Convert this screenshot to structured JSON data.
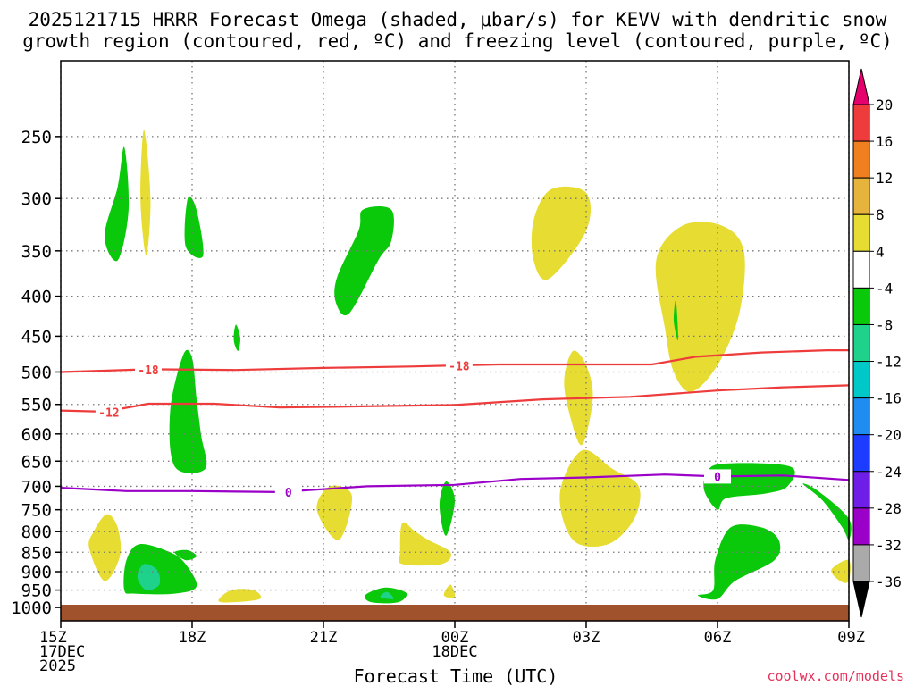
{
  "chart_data": {
    "type": "time-height cross section (filled contour + line contours)",
    "title_line1": "2025121715 HRRR Forecast Omega (shaded, μbar/s) for KEVV with dendritic snow",
    "title_line2": "growth region (contoured, red, ºC) and freezing level (contoured, purple, ºC)",
    "xlabel": "Forecast Time (UTC)",
    "credit": "coolwx.com/models",
    "x_range_hours": [
      0,
      18
    ],
    "x_ticks": [
      {
        "h": 0,
        "lines": [
          "15Z",
          "17DEC",
          "2025"
        ]
      },
      {
        "h": 3,
        "lines": [
          "18Z"
        ]
      },
      {
        "h": 6,
        "lines": [
          "21Z"
        ]
      },
      {
        "h": 9,
        "lines": [
          "00Z",
          "18DEC"
        ]
      },
      {
        "h": 12,
        "lines": [
          "03Z"
        ]
      },
      {
        "h": 15,
        "lines": [
          "06Z"
        ]
      },
      {
        "h": 18,
        "lines": [
          "09Z"
        ]
      }
    ],
    "y_axis": "pressure (hPa, log scale)",
    "y_range_hpa": [
      200,
      1040
    ],
    "y_ticks": [
      "250",
      "300",
      "350",
      "400",
      "450",
      "500",
      "550",
      "600",
      "650",
      "700",
      "750",
      "800",
      "850",
      "900",
      "950",
      "1000"
    ],
    "legend_ticks": [
      "20",
      "16",
      "12",
      "8",
      "4",
      "-4",
      "-8",
      "-12",
      "-16",
      "-20",
      "-24",
      "-28",
      "-32",
      "-36"
    ],
    "legend_levels": [
      {
        "color": "#e6006e"
      },
      {
        "color": "#ee3c3c"
      },
      {
        "color": "#ef7f1f"
      },
      {
        "color": "#e6b43c"
      },
      {
        "color": "#e6dc32"
      },
      {
        "color": "#ffffff"
      },
      {
        "color": "#0ac80a"
      },
      {
        "color": "#1ed28c"
      },
      {
        "color": "#00c8c8"
      },
      {
        "color": "#1e8cf0"
      },
      {
        "color": "#1e3cff"
      },
      {
        "color": "#6e1ee6"
      },
      {
        "color": "#9b00c8"
      },
      {
        "color": "#aaaaaa"
      },
      {
        "color": "#000000"
      }
    ],
    "terrain_color": "#a0522d",
    "shaded_regions": [
      {
        "color": "#0ac80a",
        "pts": [
          [
            1.45,
            258
          ],
          [
            1.3,
            290
          ],
          [
            1.0,
            335
          ],
          [
            1.3,
            360
          ],
          [
            1.55,
            310
          ]
        ]
      },
      {
        "color": "#e6dc32",
        "pts": [
          [
            1.9,
            245
          ],
          [
            1.82,
            300
          ],
          [
            1.95,
            355
          ],
          [
            2.05,
            300
          ]
        ]
      },
      {
        "color": "#0ac80a",
        "pts": [
          [
            2.9,
            300
          ],
          [
            2.85,
            345
          ],
          [
            3.25,
            355
          ],
          [
            3.1,
            310
          ]
        ]
      },
      {
        "color": "#0ac80a",
        "pts": [
          [
            6.9,
            310
          ],
          [
            6.8,
            330
          ],
          [
            6.3,
            380
          ],
          [
            6.3,
            410
          ],
          [
            6.6,
            420
          ],
          [
            7.25,
            360
          ],
          [
            7.55,
            340
          ],
          [
            7.55,
            310
          ]
        ]
      },
      {
        "color": "#e6dc32",
        "pts": [
          [
            11.2,
            292
          ],
          [
            10.8,
            320
          ],
          [
            10.8,
            360
          ],
          [
            11.15,
            380
          ],
          [
            12.0,
            330
          ],
          [
            12.0,
            295
          ]
        ]
      },
      {
        "color": "#e6dc32",
        "pts": [
          [
            14.2,
            325
          ],
          [
            13.6,
            360
          ],
          [
            13.8,
            440
          ],
          [
            14.0,
            500
          ],
          [
            14.4,
            530
          ],
          [
            15.0,
            490
          ],
          [
            15.5,
            420
          ],
          [
            15.6,
            350
          ],
          [
            15.1,
            325
          ]
        ]
      },
      {
        "color": "#0ac80a",
        "pts": [
          [
            4.0,
            435
          ],
          [
            3.95,
            455
          ],
          [
            4.05,
            470
          ],
          [
            4.1,
            452
          ]
        ]
      },
      {
        "color": "#0ac80a",
        "pts": [
          [
            2.8,
            475
          ],
          [
            2.5,
            560
          ],
          [
            2.6,
            660
          ],
          [
            3.3,
            665
          ],
          [
            3.2,
            600
          ],
          [
            3.1,
            540
          ],
          [
            3.0,
            480
          ]
        ]
      },
      {
        "color": "#e6dc32",
        "pts": [
          [
            11.7,
            470
          ],
          [
            11.5,
            510
          ],
          [
            11.6,
            560
          ],
          [
            11.9,
            620
          ],
          [
            12.15,
            540
          ],
          [
            12.0,
            490
          ]
        ]
      },
      {
        "color": "#0ac80a",
        "pts": [
          [
            14.1,
            455
          ],
          [
            14.0,
            430
          ],
          [
            14.05,
            405
          ]
        ]
      },
      {
        "color": "#e6dc32",
        "pts": [
          [
            11.9,
            630
          ],
          [
            11.4,
            715
          ],
          [
            11.7,
            820
          ],
          [
            12.5,
            830
          ],
          [
            13.1,
            770
          ],
          [
            13.2,
            700
          ],
          [
            12.6,
            665
          ]
        ]
      },
      {
        "color": "#0ac80a",
        "pts": [
          [
            15.1,
            655
          ],
          [
            14.75,
            675
          ],
          [
            14.7,
            710
          ],
          [
            15.0,
            750
          ],
          [
            15.2,
            725
          ],
          [
            16.1,
            715
          ],
          [
            16.6,
            700
          ],
          [
            16.65,
            660
          ]
        ]
      },
      {
        "color": "#0ac80a",
        "pts": [
          [
            16.95,
            695
          ],
          [
            17.4,
            730
          ],
          [
            17.85,
            790
          ],
          [
            18.0,
            820
          ],
          [
            18.0,
            770
          ],
          [
            17.3,
            710
          ]
        ]
      },
      {
        "color": "#e6dc32",
        "pts": [
          [
            6.15,
            700
          ],
          [
            5.85,
            750
          ],
          [
            6.35,
            820
          ],
          [
            6.65,
            720
          ]
        ]
      },
      {
        "color": "#0ac80a",
        "pts": [
          [
            8.8,
            690
          ],
          [
            8.65,
            740
          ],
          [
            8.8,
            810
          ],
          [
            9.0,
            730
          ]
        ]
      },
      {
        "color": "#e6dc32",
        "pts": [
          [
            1.05,
            760
          ],
          [
            0.75,
            800
          ],
          [
            0.65,
            840
          ],
          [
            1.0,
            925
          ],
          [
            1.35,
            860
          ],
          [
            1.3,
            790
          ]
        ]
      },
      {
        "color": "#e6dc32",
        "pts": [
          [
            7.8,
            780
          ],
          [
            7.75,
            850
          ],
          [
            7.8,
            880
          ],
          [
            8.7,
            880
          ],
          [
            8.9,
            850
          ],
          [
            8.4,
            820
          ],
          [
            8.1,
            800
          ]
        ]
      },
      {
        "color": "#0ac80a",
        "pts": [
          [
            1.8,
            830
          ],
          [
            1.5,
            870
          ],
          [
            1.45,
            950
          ],
          [
            1.7,
            960
          ],
          [
            2.6,
            960
          ],
          [
            3.1,
            940
          ],
          [
            2.85,
            880
          ],
          [
            2.5,
            850
          ]
        ]
      },
      {
        "color": "#1ed28c",
        "pts": [
          [
            1.9,
            880
          ],
          [
            1.75,
            915
          ],
          [
            1.95,
            950
          ],
          [
            2.25,
            935
          ],
          [
            2.2,
            895
          ]
        ]
      },
      {
        "color": "#0ac80a",
        "pts": [
          [
            2.6,
            850
          ],
          [
            2.9,
            845
          ],
          [
            3.1,
            860
          ],
          [
            2.85,
            870
          ]
        ]
      },
      {
        "color": "#0ac80a",
        "pts": [
          [
            15.3,
            790
          ],
          [
            14.95,
            870
          ],
          [
            14.9,
            950
          ],
          [
            14.55,
            965
          ],
          [
            15.0,
            975
          ],
          [
            15.4,
            925
          ],
          [
            16.3,
            870
          ],
          [
            16.4,
            820
          ],
          [
            16.0,
            790
          ]
        ]
      },
      {
        "color": "#e6dc32",
        "pts": [
          [
            18.0,
            870
          ],
          [
            17.6,
            895
          ],
          [
            17.8,
            925
          ],
          [
            18.0,
            925
          ]
        ]
      },
      {
        "color": "#e6dc32",
        "pts": [
          [
            3.9,
            950
          ],
          [
            3.6,
            980
          ],
          [
            3.9,
            985
          ],
          [
            4.55,
            975
          ],
          [
            4.4,
            950
          ]
        ]
      },
      {
        "color": "#0ac80a",
        "pts": [
          [
            7.3,
            945
          ],
          [
            6.95,
            965
          ],
          [
            7.1,
            985
          ],
          [
            7.7,
            985
          ],
          [
            7.9,
            960
          ],
          [
            7.6,
            945
          ]
        ]
      },
      {
        "color": "#1ed28c",
        "pts": [
          [
            7.45,
            955
          ],
          [
            7.3,
            970
          ],
          [
            7.6,
            975
          ]
        ]
      },
      {
        "color": "#e6dc32",
        "pts": [
          [
            8.9,
            935
          ],
          [
            8.75,
            965
          ],
          [
            9.0,
            970
          ]
        ]
      }
    ],
    "contours": [
      {
        "name": "dgz-minus18-line",
        "level": "-18",
        "color": "#ee3c3c",
        "pts": [
          [
            0,
            500
          ],
          [
            2,
            496
          ],
          [
            4,
            497
          ],
          [
            6,
            494
          ],
          [
            8,
            492
          ],
          [
            10,
            489
          ],
          [
            12,
            489
          ],
          [
            13.5,
            489
          ],
          [
            14.5,
            478
          ],
          [
            16,
            472
          ],
          [
            17.5,
            469
          ],
          [
            18,
            469
          ]
        ],
        "label_at": [
          [
            2.0,
            497
          ],
          [
            9.1,
            491
          ]
        ]
      },
      {
        "name": "dgz-minus12-line",
        "level": "-12",
        "color": "#ee3c3c",
        "pts": [
          [
            0,
            560
          ],
          [
            1,
            562
          ],
          [
            2,
            549
          ],
          [
            3.5,
            549
          ],
          [
            5,
            555
          ],
          [
            7,
            553
          ],
          [
            9,
            551
          ],
          [
            11,
            542
          ],
          [
            13,
            538
          ],
          [
            15,
            528
          ],
          [
            16.5,
            523
          ],
          [
            18,
            520
          ]
        ],
        "label_at": [
          [
            1.1,
            563
          ]
        ]
      },
      {
        "name": "freezing-level-line",
        "level": "0",
        "color": "#9b00c8",
        "pts": [
          [
            0,
            703
          ],
          [
            1.5,
            710
          ],
          [
            3,
            710
          ],
          [
            5,
            712
          ],
          [
            7,
            700
          ],
          [
            9,
            697
          ],
          [
            10.5,
            685
          ],
          [
            12,
            682
          ],
          [
            13.8,
            676
          ],
          [
            15,
            680
          ],
          [
            16.5,
            678
          ],
          [
            18,
            687
          ]
        ],
        "label_at": [
          [
            5.2,
            712
          ],
          [
            15.0,
            680
          ]
        ]
      }
    ]
  }
}
